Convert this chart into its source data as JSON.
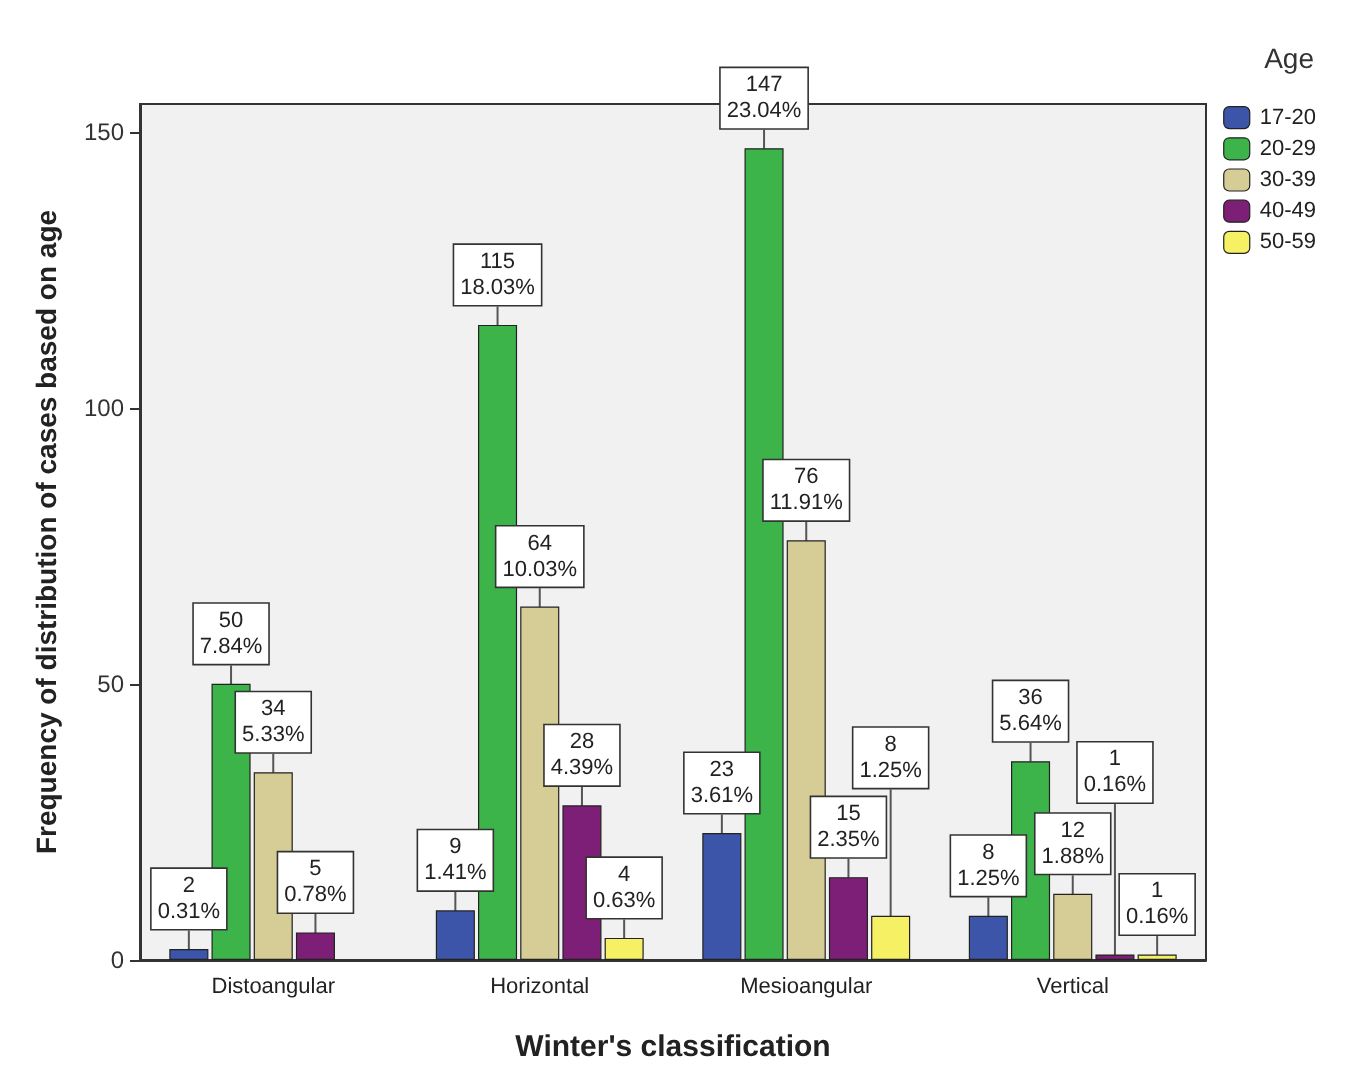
{
  "chart_data": {
    "type": "bar",
    "xlabel": "Winter's classification",
    "ylabel": "Frequency of distribution of cases based on age",
    "legend_title": "Age",
    "legend": "top right",
    "grid": false,
    "categories": [
      "Distoangular",
      "Horizontal",
      "Mesioangular",
      "Vertical"
    ],
    "ylim": [
      0,
      155
    ],
    "yticks": [
      0,
      50,
      100,
      150
    ],
    "series": [
      {
        "name": "17-20",
        "color": "#3d55a8",
        "values": [
          2,
          9,
          23,
          8
        ],
        "value_labels": [
          "2\n0.31%",
          "9\n1.41%",
          "23\n3.61%",
          "8\n1.25%"
        ]
      },
      {
        "name": "20-29",
        "color": "#3cb44a",
        "values": [
          50,
          115,
          147,
          36
        ],
        "value_labels": [
          "50\n7.84%",
          "115\n18.03%",
          "147\n23.04%",
          "36\n5.64%"
        ]
      },
      {
        "name": "30-39",
        "color": "#d6cc96",
        "values": [
          34,
          64,
          76,
          12
        ],
        "value_labels": [
          "34\n5.33%",
          "64\n10.03%",
          "76\n11.91%",
          "12\n1.88%"
        ]
      },
      {
        "name": "40-49",
        "color": "#7d1f77",
        "values": [
          5,
          28,
          15,
          1
        ],
        "value_labels": [
          "5\n0.78%",
          "28\n4.39%",
          "15\n2.35%",
          "1\n0.16%"
        ]
      },
      {
        "name": "50-59",
        "color": "#f5f064",
        "values": [
          null,
          4,
          8,
          1
        ],
        "value_labels": [
          null,
          "4\n0.63%",
          "8\n1.25%",
          "1\n0.16%"
        ]
      }
    ]
  }
}
